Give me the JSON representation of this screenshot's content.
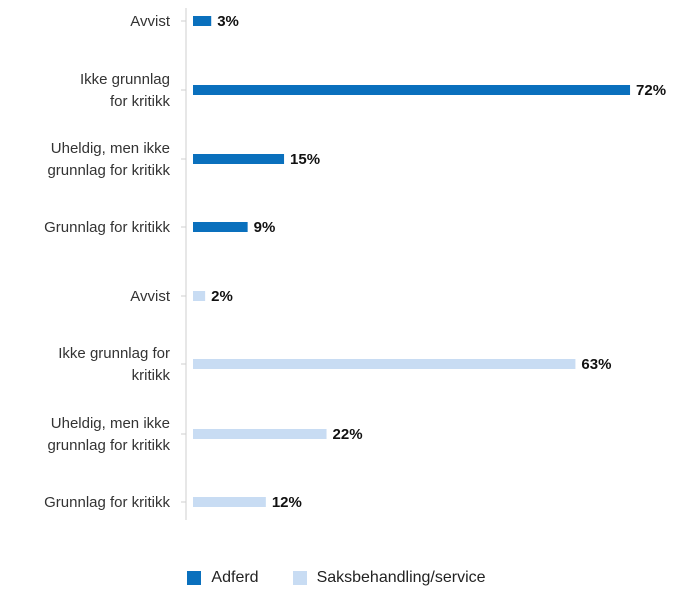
{
  "chart_data": {
    "type": "bar",
    "orientation": "horizontal",
    "xlim": [
      0,
      100
    ],
    "grid": false,
    "legend_position": "bottom",
    "groups": [
      {
        "series": "Adferd",
        "color": "#0a70bd",
        "items": [
          {
            "label": [
              "Avvist"
            ],
            "value": 3,
            "value_label": "3%"
          },
          {
            "label": [
              "Ikke grunnlag",
              "for kritikk"
            ],
            "value": 72,
            "value_label": "72%"
          },
          {
            "label": [
              "Uheldig, men ikke",
              "grunnlag for kritikk"
            ],
            "value": 15,
            "value_label": "15%"
          },
          {
            "label": [
              "Grunnlag for kritikk"
            ],
            "value": 9,
            "value_label": "9%"
          }
        ]
      },
      {
        "series": "Saksbehandling/service",
        "color": "#c8dcf3",
        "items": [
          {
            "label": [
              "Avvist"
            ],
            "value": 2,
            "value_label": "2%"
          },
          {
            "label": [
              "Ikke grunnlag for",
              "kritikk"
            ],
            "value": 63,
            "value_label": "63%"
          },
          {
            "label": [
              "Uheldig, men ikke",
              "grunnlag for kritikk"
            ],
            "value": 22,
            "value_label": "22%"
          },
          {
            "label": [
              "Grunnlag for kritikk"
            ],
            "value": 12,
            "value_label": "12%"
          }
        ]
      }
    ],
    "legend": [
      {
        "name": "Adferd",
        "color": "#0a70bd"
      },
      {
        "name": "Saksbehandling/service",
        "color": "#c8dcf3"
      }
    ]
  }
}
